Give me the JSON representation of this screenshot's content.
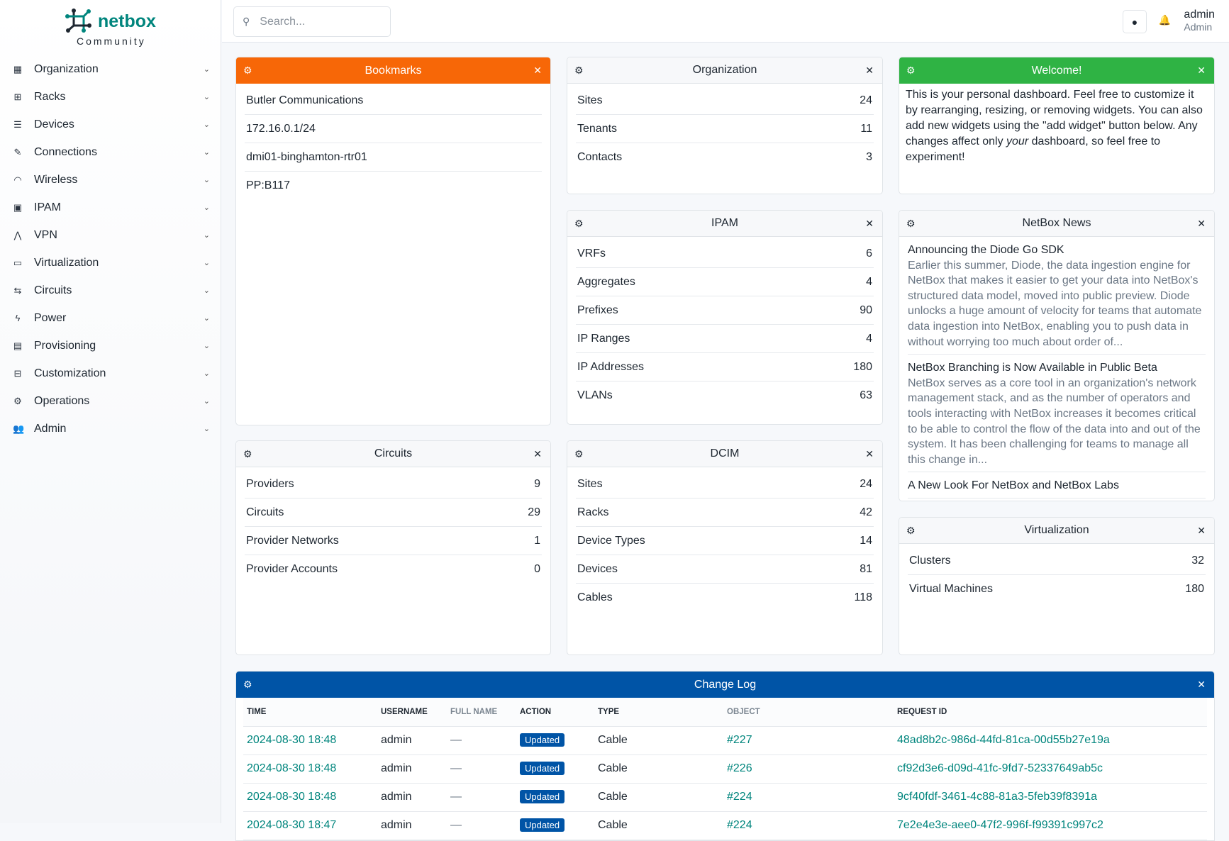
{
  "brand": {
    "name": "netbox",
    "edition": "Community",
    "colors": {
      "teal": "#00857d",
      "dark": "#1d2630"
    }
  },
  "sidebar": {
    "items": [
      {
        "label": "Organization",
        "icon": "building-icon"
      },
      {
        "label": "Racks",
        "icon": "rack-icon"
      },
      {
        "label": "Devices",
        "icon": "server-icon"
      },
      {
        "label": "Connections",
        "icon": "plug-icon"
      },
      {
        "label": "Wireless",
        "icon": "wifi-icon"
      },
      {
        "label": "IPAM",
        "icon": "counter-icon"
      },
      {
        "label": "VPN",
        "icon": "tunnel-icon"
      },
      {
        "label": "Virtualization",
        "icon": "monitor-icon"
      },
      {
        "label": "Circuits",
        "icon": "transit-icon"
      },
      {
        "label": "Power",
        "icon": "flash-icon"
      },
      {
        "label": "Provisioning",
        "icon": "file-document-icon"
      },
      {
        "label": "Customization",
        "icon": "toolbox-icon"
      },
      {
        "label": "Operations",
        "icon": "cogs-icon"
      },
      {
        "label": "Admin",
        "icon": "account-multiple-icon"
      }
    ]
  },
  "header": {
    "search_placeholder": "Search...",
    "username": "admin",
    "role": "Admin"
  },
  "widgets": {
    "bookmarks": {
      "title": "Bookmarks",
      "color": "#f76707",
      "items": [
        "Butler Communications",
        "172.16.0.1/24",
        "dmi01-binghamton-rtr01",
        "PP:B117"
      ]
    },
    "organization": {
      "title": "Organization",
      "rows": [
        {
          "label": "Sites",
          "value": "24"
        },
        {
          "label": "Tenants",
          "value": "11"
        },
        {
          "label": "Contacts",
          "value": "3"
        }
      ]
    },
    "welcome": {
      "title": "Welcome!",
      "color": "#2fb344",
      "text_before": "This is your personal dashboard. Feel free to customize it by rearranging, resizing, or removing widgets. You can also add new widgets using the \"add widget\" button below. Any changes affect only ",
      "text_em": "your",
      "text_after": " dashboard, so feel free to experiment!"
    },
    "ipam": {
      "title": "IPAM",
      "rows": [
        {
          "label": "VRFs",
          "value": "6"
        },
        {
          "label": "Aggregates",
          "value": "4"
        },
        {
          "label": "Prefixes",
          "value": "90"
        },
        {
          "label": "IP Ranges",
          "value": "4"
        },
        {
          "label": "IP Addresses",
          "value": "180"
        },
        {
          "label": "VLANs",
          "value": "63"
        }
      ]
    },
    "news": {
      "title": "NetBox News",
      "items": [
        {
          "title": "Announcing the Diode Go SDK",
          "desc": "Earlier this summer, Diode, the data ingestion engine for NetBox that makes it easier to get your data into NetBox's structured data model, moved into public preview. Diode unlocks a huge amount of velocity for teams that automate data ingestion into NetBox, enabling you to push data in without worrying too much about order of..."
        },
        {
          "title": "NetBox Branching is Now Available in Public Beta",
          "desc": "NetBox serves as a core tool in an organization's network management stack, and as the number of operators and tools interacting with NetBox increases it becomes critical to be able to control the flow of the data into and out of the system. It has been challenging for teams to manage all this change in..."
        },
        {
          "title": "A New Look For NetBox and NetBox Labs",
          "desc": ""
        }
      ]
    },
    "circuits": {
      "title": "Circuits",
      "rows": [
        {
          "label": "Providers",
          "value": "9"
        },
        {
          "label": "Circuits",
          "value": "29"
        },
        {
          "label": "Provider Networks",
          "value": "1"
        },
        {
          "label": "Provider Accounts",
          "value": "0"
        }
      ]
    },
    "dcim": {
      "title": "DCIM",
      "rows": [
        {
          "label": "Sites",
          "value": "24"
        },
        {
          "label": "Racks",
          "value": "42"
        },
        {
          "label": "Device Types",
          "value": "14"
        },
        {
          "label": "Devices",
          "value": "81"
        },
        {
          "label": "Cables",
          "value": "118"
        }
      ]
    },
    "virtualization": {
      "title": "Virtualization",
      "rows": [
        {
          "label": "Clusters",
          "value": "32"
        },
        {
          "label": "Virtual Machines",
          "value": "180"
        }
      ]
    },
    "changelog": {
      "title": "Change Log",
      "color": "#0054a6",
      "columns": [
        "TIME",
        "USERNAME",
        "FULL NAME",
        "ACTION",
        "TYPE",
        "OBJECT",
        "REQUEST ID"
      ],
      "rows": [
        {
          "time": "2024-08-30 18:48",
          "username": "admin",
          "full_name": "—",
          "action": "Updated",
          "type": "Cable",
          "object": "#227",
          "request_id": "48ad8b2c-986d-44fd-81ca-00d55b27e19a"
        },
        {
          "time": "2024-08-30 18:48",
          "username": "admin",
          "full_name": "—",
          "action": "Updated",
          "type": "Cable",
          "object": "#226",
          "request_id": "cf92d3e6-d09d-41fc-9fd7-52337649ab5c"
        },
        {
          "time": "2024-08-30 18:48",
          "username": "admin",
          "full_name": "—",
          "action": "Updated",
          "type": "Cable",
          "object": "#224",
          "request_id": "9cf40fdf-3461-4c88-81a3-5feb39f8391a"
        },
        {
          "time": "2024-08-30 18:47",
          "username": "admin",
          "full_name": "—",
          "action": "Updated",
          "type": "Cable",
          "object": "#224",
          "request_id": "7e2e4e3e-aee0-47f2-996f-f99391c997c2"
        }
      ]
    }
  }
}
